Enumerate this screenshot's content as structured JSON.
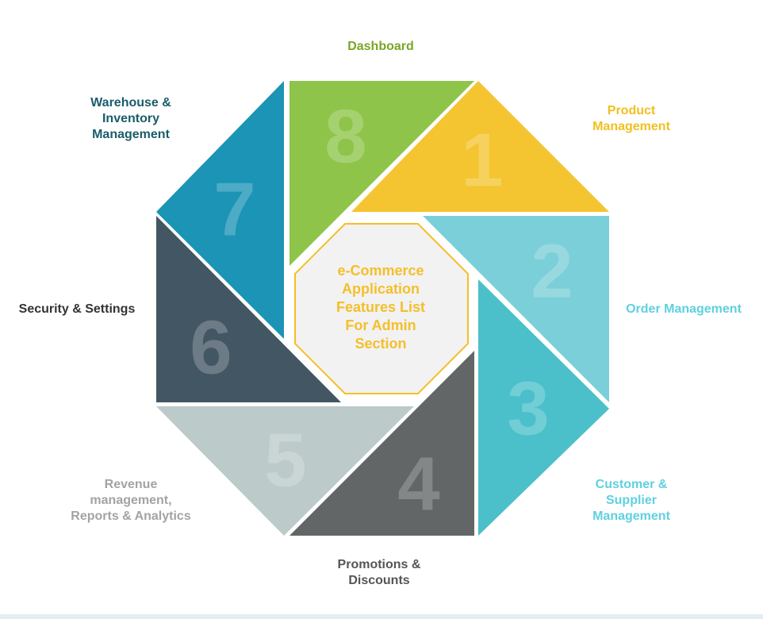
{
  "diagram": {
    "center": {
      "lines": [
        "e-Commerce",
        "Application",
        "Features List",
        "For Admin",
        "Section"
      ],
      "text_color": "#f4bf2a",
      "fill": "#f2f2f2",
      "border_color": "#f4bf2a"
    },
    "segments": [
      {
        "number": "1",
        "color": "#f4c431",
        "label_color": "#f0c020",
        "label_lines": [
          "Product",
          "Management"
        ]
      },
      {
        "number": "2",
        "color": "#7bcfd8",
        "label_color": "#5fd0e0",
        "label_lines": [
          "Order Management"
        ]
      },
      {
        "number": "3",
        "color": "#4bc0ca",
        "label_color": "#5fd0e0",
        "label_lines": [
          "Customer &",
          "Supplier",
          "Management"
        ]
      },
      {
        "number": "4",
        "color": "#626667",
        "label_color": "#555555",
        "label_lines": [
          "Promotions &",
          "Discounts"
        ]
      },
      {
        "number": "5",
        "color": "#bccac9",
        "label_color": "#a3a3a3",
        "label_lines": [
          "Revenue",
          "management,",
          "Reports & Analytics"
        ]
      },
      {
        "number": "6",
        "color": "#435663",
        "label_color": "#333333",
        "label_lines": [
          "Security & Settings"
        ]
      },
      {
        "number": "7",
        "color": "#1b94b5",
        "label_color": "#1a5c6a",
        "label_lines": [
          "Warehouse &",
          "Inventory",
          "Management"
        ]
      },
      {
        "number": "8",
        "color": "#8ec44a",
        "label_color": "#7aa526",
        "label_lines": [
          "Dashboard"
        ]
      }
    ]
  }
}
